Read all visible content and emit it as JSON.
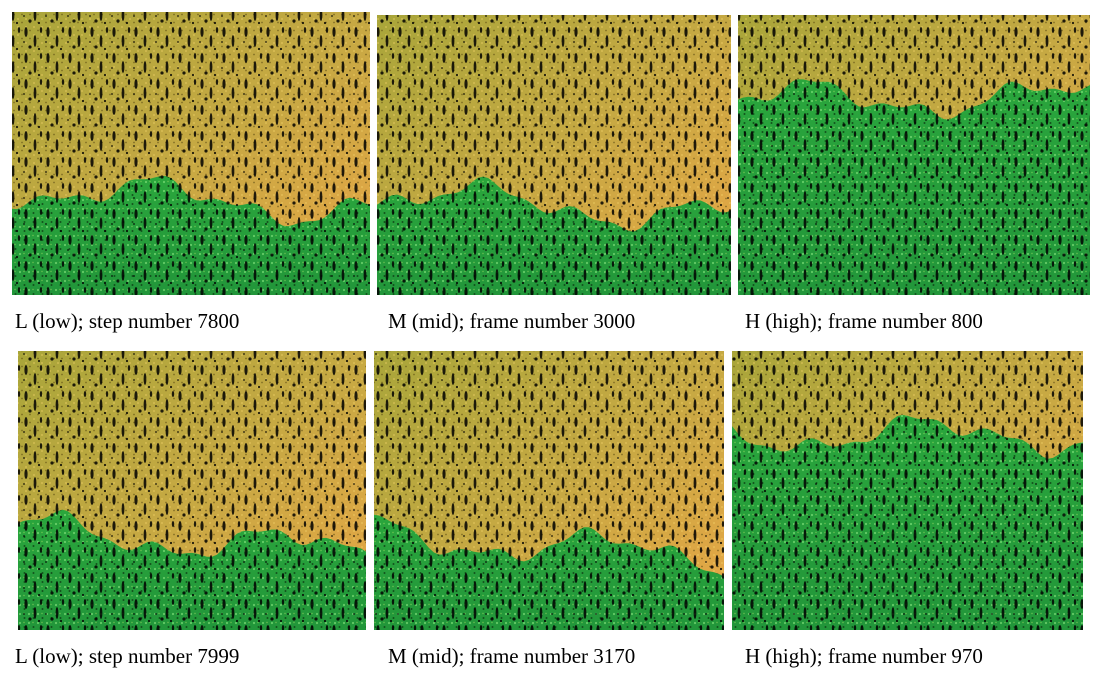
{
  "panels": [
    {
      "caption": "L (low); step number 7800"
    },
    {
      "caption": "M (mid); frame number 3000"
    },
    {
      "caption": "H (high); frame number 800"
    },
    {
      "caption": "L (low); step number 7999"
    },
    {
      "caption": "M (mid); frame number 3170"
    },
    {
      "caption": "H (high); frame number 970"
    }
  ]
}
